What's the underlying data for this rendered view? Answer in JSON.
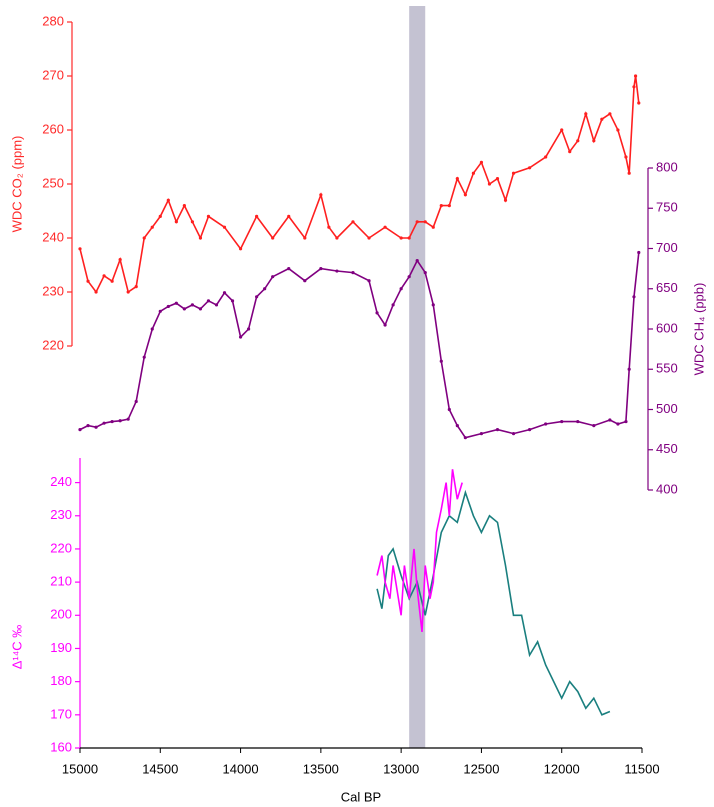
{
  "chart_data": [
    {
      "type": "line",
      "ylabel": "WDC CO₂ (ppm)",
      "axis_color": "#ff2a2a",
      "axis_side": "left",
      "xlim": [
        15000,
        11500
      ],
      "ylim": [
        220,
        280
      ],
      "yticks": [
        220,
        230,
        240,
        250,
        260,
        270,
        280
      ],
      "highlight": [
        12950,
        12850
      ],
      "highlight_color": "#c4c2d2",
      "markers": true,
      "series": [
        {
          "color": "#ff2020",
          "x": [
            15000,
            14950,
            14900,
            14850,
            14800,
            14750,
            14700,
            14650,
            14600,
            14550,
            14500,
            14450,
            14400,
            14350,
            14300,
            14250,
            14200,
            14100,
            14000,
            13900,
            13800,
            13700,
            13600,
            13500,
            13450,
            13400,
            13300,
            13200,
            13100,
            13000,
            12950,
            12900,
            12850,
            12800,
            12750,
            12700,
            12650,
            12600,
            12550,
            12500,
            12450,
            12400,
            12350,
            12300,
            12200,
            12100,
            12000,
            11950,
            11900,
            11850,
            11800,
            11750,
            11700,
            11650,
            11600,
            11580,
            11550,
            11540,
            11520
          ],
          "values": [
            238,
            232,
            230,
            233,
            232,
            236,
            230,
            231,
            240,
            242,
            244,
            247,
            243,
            246,
            243,
            240,
            244,
            242,
            238,
            244,
            240,
            244,
            240,
            248,
            242,
            240,
            243,
            240,
            242,
            240,
            240,
            243,
            243,
            242,
            246,
            246,
            251,
            248,
            252,
            254,
            250,
            251,
            247,
            252,
            253,
            255,
            260,
            256,
            258,
            263,
            258,
            262,
            263,
            260,
            255,
            252,
            268,
            270,
            265
          ]
        }
      ]
    },
    {
      "type": "line",
      "ylabel": "WDC CH₄ (ppb)",
      "axis_color": "#800080",
      "axis_side": "right",
      "xlim": [
        15000,
        11500
      ],
      "ylim": [
        400,
        800
      ],
      "yticks": [
        400,
        450,
        500,
        550,
        600,
        650,
        700,
        750,
        800
      ],
      "markers": true,
      "series": [
        {
          "color": "#800080",
          "x": [
            15000,
            14950,
            14900,
            14850,
            14800,
            14750,
            14700,
            14650,
            14600,
            14550,
            14500,
            14450,
            14400,
            14350,
            14300,
            14250,
            14200,
            14150,
            14100,
            14050,
            14000,
            13950,
            13900,
            13850,
            13800,
            13700,
            13600,
            13500,
            13400,
            13300,
            13200,
            13150,
            13100,
            13050,
            13000,
            12950,
            12900,
            12850,
            12800,
            12750,
            12700,
            12650,
            12600,
            12500,
            12400,
            12300,
            12200,
            12100,
            12000,
            11900,
            11800,
            11700,
            11650,
            11600,
            11580,
            11550,
            11520
          ],
          "values": [
            475,
            480,
            478,
            483,
            485,
            486,
            488,
            510,
            565,
            600,
            622,
            628,
            632,
            625,
            630,
            625,
            635,
            630,
            645,
            635,
            590,
            600,
            640,
            650,
            665,
            675,
            660,
            675,
            672,
            670,
            660,
            620,
            605,
            630,
            650,
            665,
            685,
            670,
            630,
            560,
            500,
            480,
            465,
            470,
            475,
            470,
            475,
            482,
            485,
            485,
            480,
            487,
            482,
            485,
            550,
            640,
            695
          ]
        }
      ]
    },
    {
      "type": "line",
      "ylabel": "Δ¹⁴C ‰",
      "axis_color": "#ff00ff",
      "axis_side": "left",
      "xlim": [
        15000,
        11500
      ],
      "ylim": [
        160,
        245
      ],
      "yticks": [
        160,
        170,
        180,
        190,
        200,
        210,
        220,
        230,
        240
      ],
      "xticks": [
        15000,
        14500,
        14000,
        13500,
        13000,
        12500,
        12000,
        11500
      ],
      "xlabel": "Cal BP",
      "markers": false,
      "series": [
        {
          "color": "#1a7f7f",
          "x": [
            13150,
            13120,
            13080,
            13050,
            13000,
            12950,
            12900,
            12850,
            12800,
            12750,
            12700,
            12650,
            12600,
            12550,
            12500,
            12450,
            12400,
            12350,
            12300,
            12250,
            12200,
            12150,
            12100,
            12050,
            12000,
            11950,
            11900,
            11850,
            11800,
            11750,
            11700
          ],
          "values": [
            208,
            202,
            218,
            220,
            212,
            205,
            210,
            200,
            212,
            225,
            230,
            228,
            237,
            230,
            225,
            230,
            228,
            215,
            200,
            200,
            188,
            192,
            185,
            180,
            175,
            180,
            177,
            172,
            175,
            170,
            171
          ]
        },
        {
          "color": "#ff00ff",
          "x": [
            13150,
            13120,
            13100,
            13070,
            13050,
            13000,
            12980,
            12950,
            12920,
            12900,
            12870,
            12850,
            12820,
            12800,
            12780,
            12750,
            12720,
            12700,
            12680,
            12650,
            12620
          ],
          "values": [
            212,
            218,
            210,
            205,
            215,
            200,
            215,
            205,
            220,
            208,
            195,
            215,
            205,
            210,
            225,
            232,
            240,
            230,
            244,
            235,
            240
          ]
        }
      ]
    }
  ]
}
